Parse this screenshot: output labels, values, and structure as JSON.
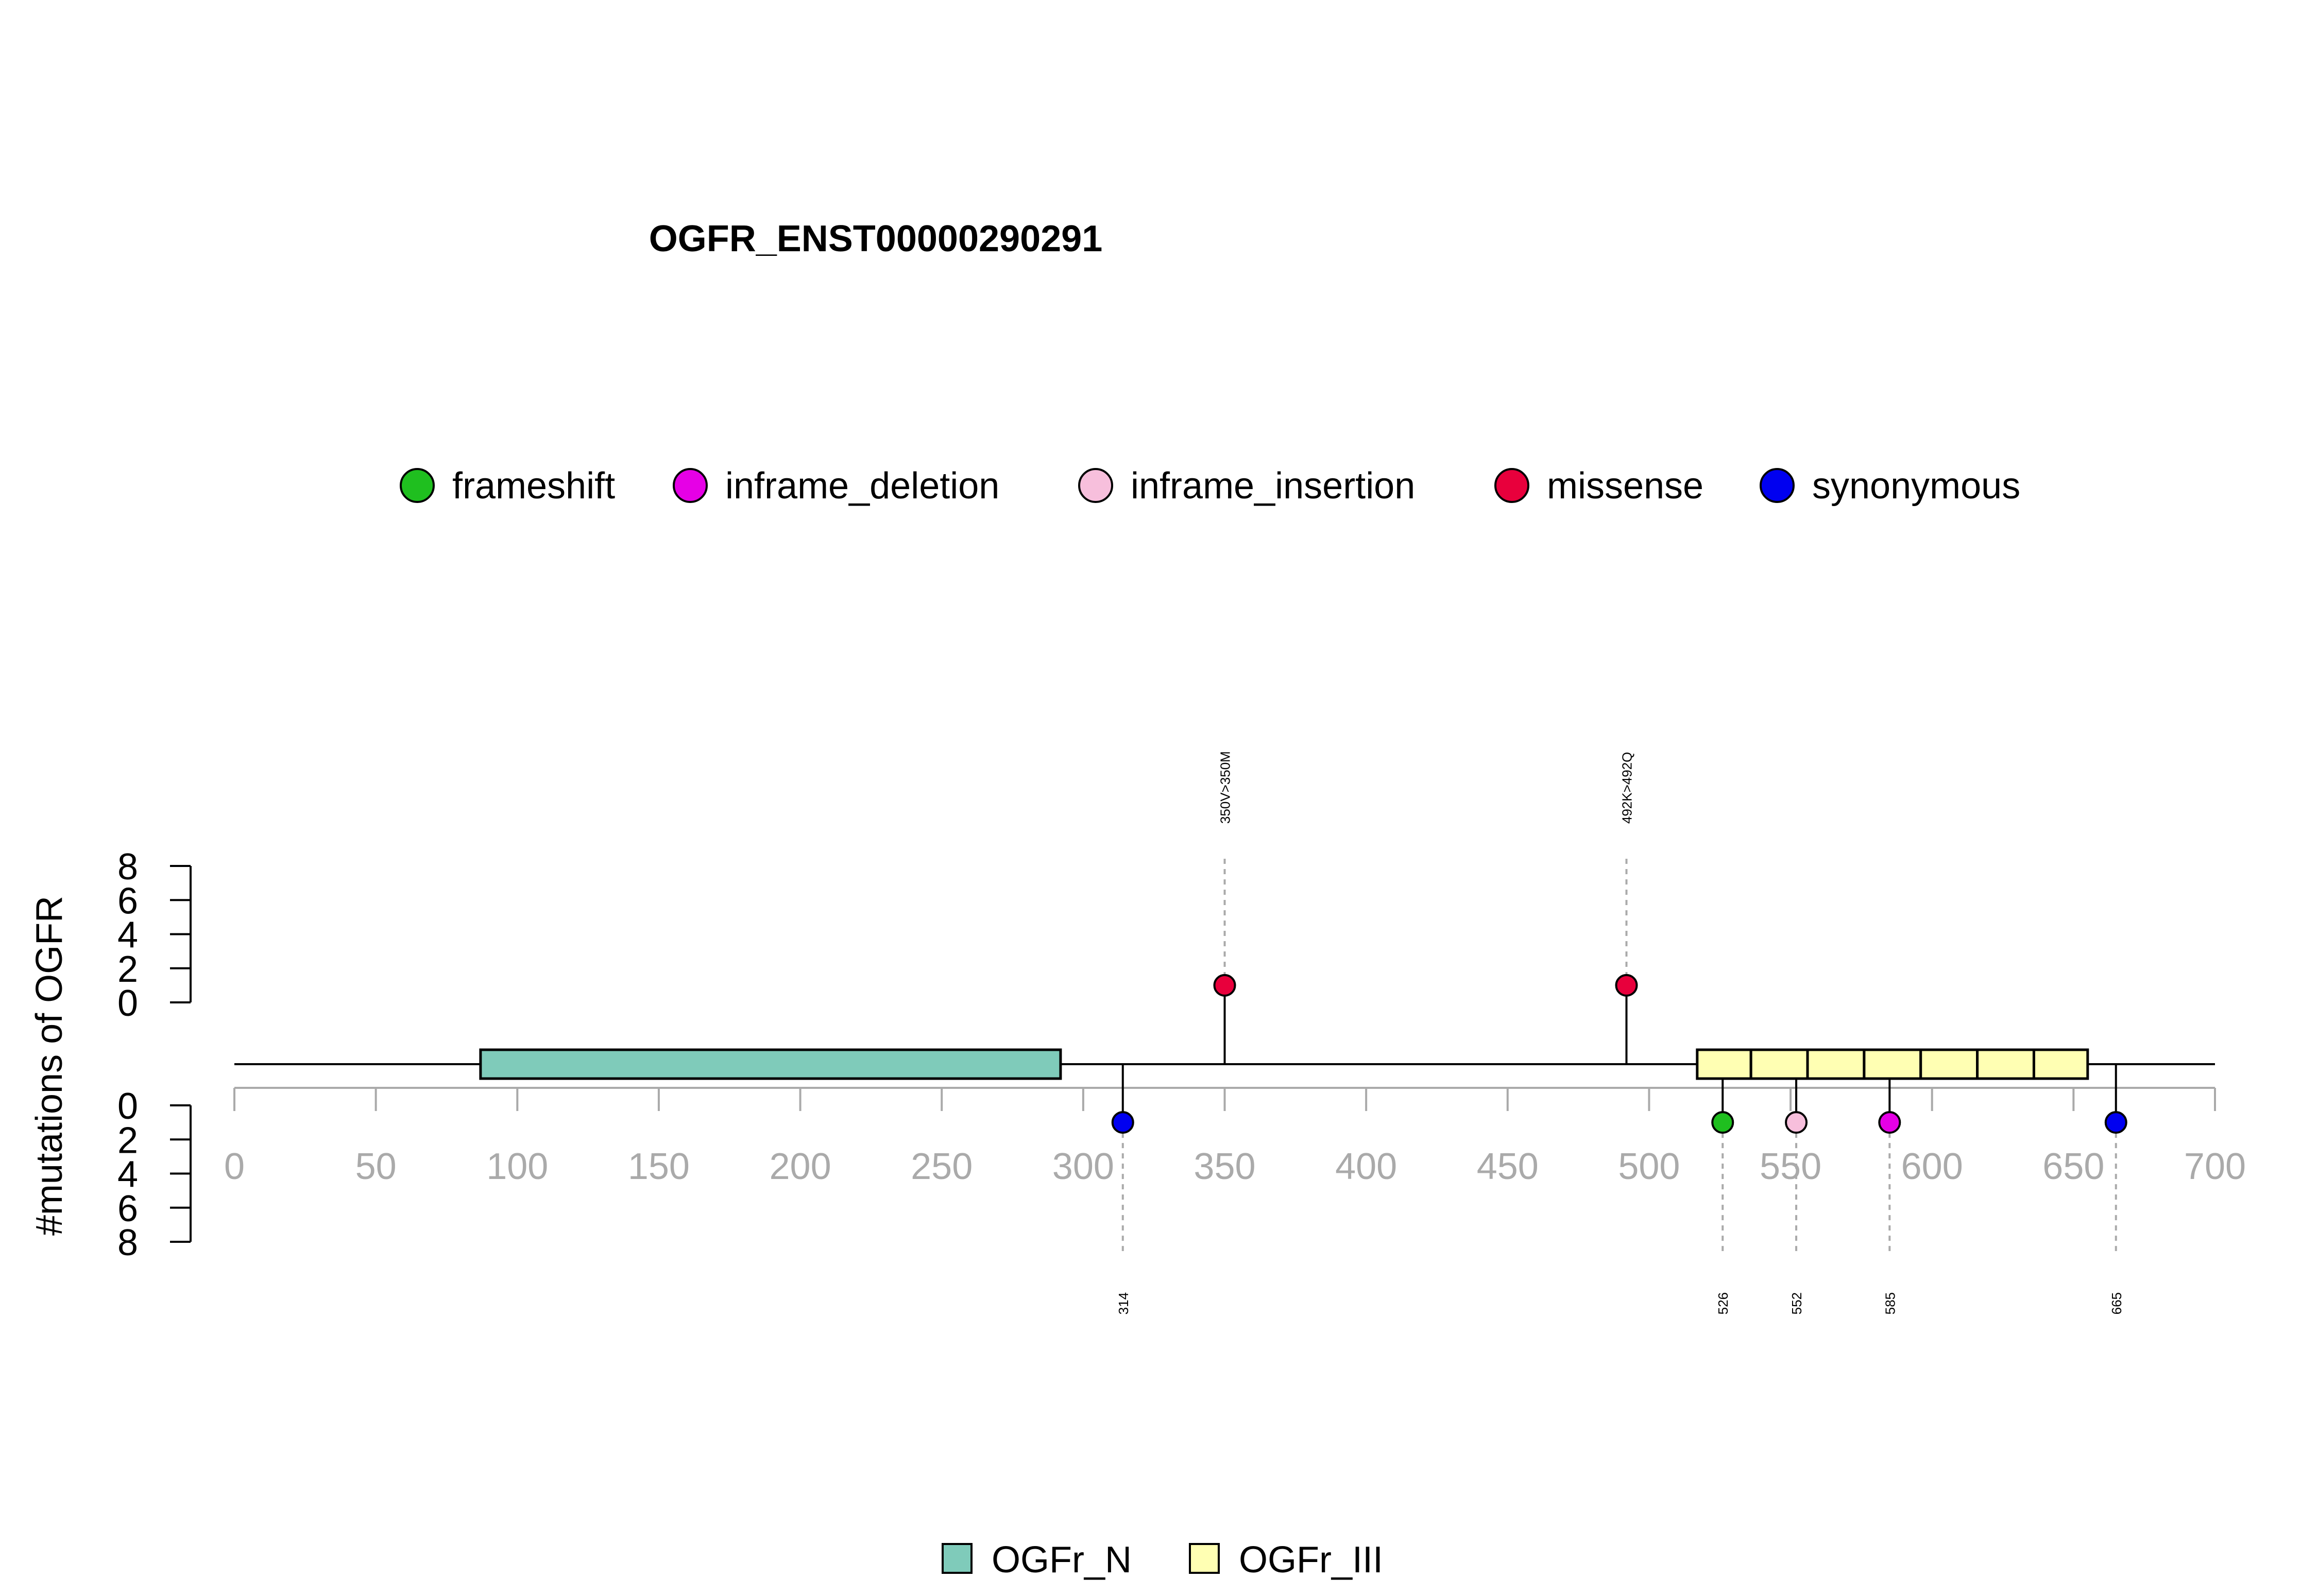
{
  "chart_data": {
    "type": "lollipop",
    "title": "OGFR_ENST00000290291",
    "ylabel": "#mutations of OGFR",
    "xlim": [
      0,
      700
    ],
    "x_ticks": [
      0,
      50,
      100,
      150,
      200,
      250,
      300,
      350,
      400,
      450,
      500,
      550,
      600,
      650,
      700
    ],
    "ylim_top": [
      0,
      8
    ],
    "y_ticks_top": [
      0,
      2,
      4,
      6,
      8
    ],
    "ylim_bottom": [
      0,
      8
    ],
    "y_ticks_bottom": [
      0,
      2,
      4,
      6,
      8
    ],
    "mutation_legend": [
      {
        "label": "frameshift",
        "color": "#1fbf1f"
      },
      {
        "label": "inframe_deletion",
        "color": "#e600e6"
      },
      {
        "label": "inframe_insertion",
        "color": "#f7bfdc"
      },
      {
        "label": "missense",
        "color": "#e8003c"
      },
      {
        "label": "synonymous",
        "color": "#0000f0"
      }
    ],
    "mutations_top": [
      {
        "position": 350,
        "count": 1,
        "type": "missense",
        "label": "350V>350M"
      },
      {
        "position": 492,
        "count": 1,
        "type": "missense",
        "label": "492K>492Q"
      }
    ],
    "mutations_bottom": [
      {
        "position": 314,
        "count": 1,
        "type": "synonymous",
        "label": "314"
      },
      {
        "position": 526,
        "count": 1,
        "type": "frameshift",
        "label": "526"
      },
      {
        "position": 552,
        "count": 1,
        "type": "inframe_insertion",
        "label": "552"
      },
      {
        "position": 585,
        "count": 1,
        "type": "inframe_deletion",
        "label": "585"
      },
      {
        "position": 665,
        "count": 1,
        "type": "synonymous",
        "label": "665"
      }
    ],
    "domains": [
      {
        "name": "OGFr_N",
        "start": 87,
        "end": 292,
        "color": "#7fcbba"
      },
      {
        "name": "OGFr_III",
        "start": 517,
        "end": 536,
        "color": "#ffffb3"
      },
      {
        "name": "OGFr_III",
        "start": 536,
        "end": 556,
        "color": "#ffffb3"
      },
      {
        "name": "OGFr_III",
        "start": 556,
        "end": 576,
        "color": "#ffffb3"
      },
      {
        "name": "OGFr_III",
        "start": 576,
        "end": 596,
        "color": "#ffffb3"
      },
      {
        "name": "OGFr_III",
        "start": 596,
        "end": 616,
        "color": "#ffffb3"
      },
      {
        "name": "OGFr_III",
        "start": 616,
        "end": 636,
        "color": "#ffffb3"
      },
      {
        "name": "OGFr_III",
        "start": 636,
        "end": 655,
        "color": "#ffffb3"
      }
    ],
    "domain_legend": [
      {
        "label": "OGFr_N",
        "color": "#7fcbba"
      },
      {
        "label": "OGFr_III",
        "color": "#ffffb3"
      }
    ],
    "grid": false,
    "mutation_legend_position": "top-center",
    "domain_legend_position": "bottom-center"
  }
}
